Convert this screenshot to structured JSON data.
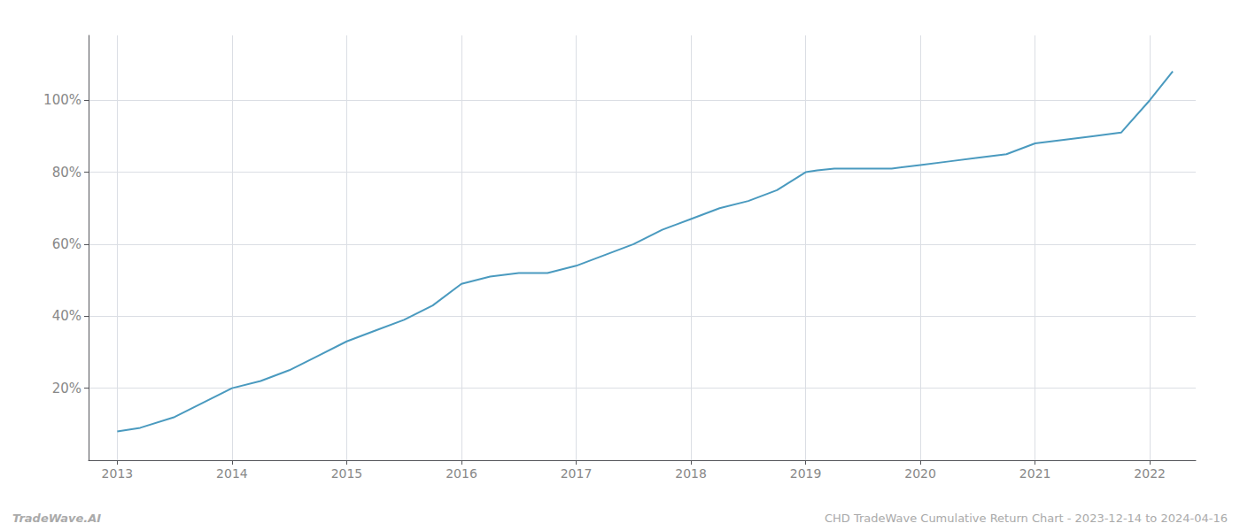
{
  "chart_data": {
    "type": "line",
    "x": [
      2013,
      2013.2,
      2013.5,
      2013.75,
      2014,
      2014.25,
      2014.5,
      2014.75,
      2015,
      2015.25,
      2015.5,
      2015.75,
      2016,
      2016.25,
      2016.5,
      2016.75,
      2017,
      2017.25,
      2017.5,
      2017.75,
      2018,
      2018.25,
      2018.5,
      2018.75,
      2019,
      2019.1,
      2019.25,
      2019.5,
      2019.75,
      2020,
      2020.25,
      2020.5,
      2020.75,
      2021,
      2021.25,
      2021.5,
      2021.75,
      2022,
      2022.2
    ],
    "values": [
      8,
      9,
      12,
      16,
      20,
      22,
      25,
      29,
      33,
      36,
      39,
      43,
      49,
      51,
      52,
      52,
      54,
      57,
      60,
      64,
      67,
      70,
      72,
      75,
      80,
      80.5,
      81,
      81,
      81,
      82,
      83,
      84,
      85,
      88,
      89,
      90,
      91,
      100,
      108
    ],
    "color": "#4a9abf",
    "xlim": [
      2012.75,
      2022.4
    ],
    "xticks": [
      2013,
      2014,
      2015,
      2016,
      2017,
      2018,
      2019,
      2020,
      2021,
      2022
    ],
    "ylim": [
      0,
      118
    ],
    "yticks": [
      {
        "value": 20,
        "label": "20%"
      },
      {
        "value": 40,
        "label": "40%"
      },
      {
        "value": 60,
        "label": "60%"
      },
      {
        "value": 80,
        "label": "80%"
      },
      {
        "value": 100,
        "label": "100%"
      }
    ],
    "grid": true,
    "annotations": [
      "TradeWave.AI",
      "CHD TradeWave Cumulative Return Chart - 2023-12-14 to 2024-04-16"
    ]
  }
}
